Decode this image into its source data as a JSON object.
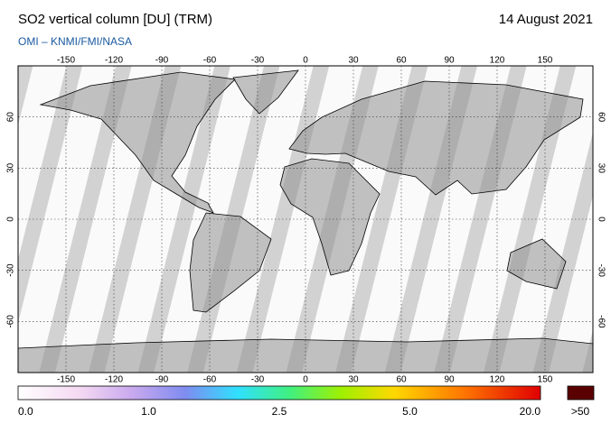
{
  "header": {
    "title": "SO2 vertical column [DU] (TRM)",
    "date": "14 August 2021",
    "credit": "OMI  –  KNMI/FMI/NASA"
  },
  "map": {
    "lon_ticks": [
      -150,
      -120,
      -90,
      -60,
      -30,
      0,
      30,
      60,
      90,
      120,
      150
    ],
    "lat_ticks": [
      -60,
      -30,
      0,
      30,
      60
    ]
  },
  "colorbar": {
    "labels": [
      {
        "value": 0,
        "label": "0.0"
      },
      {
        "value": 1,
        "label": "1.0"
      },
      {
        "value": 2.5,
        "label": "2.5"
      },
      {
        "value": 5,
        "label": "5.0"
      },
      {
        "value": 20,
        "label": "20.0"
      }
    ],
    "overflow_label": ">50"
  }
}
